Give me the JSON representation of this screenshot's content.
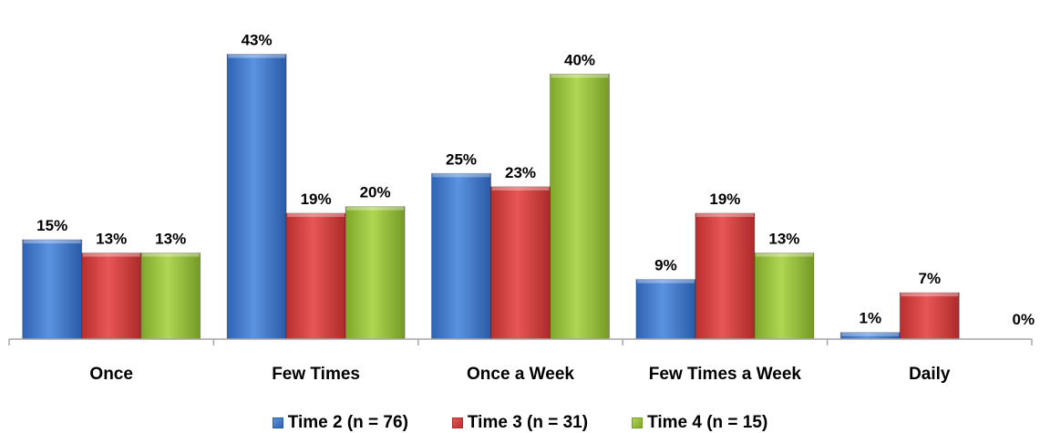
{
  "chart_data": {
    "type": "bar",
    "title": "",
    "xlabel": "",
    "ylabel": "",
    "ylim": [
      0,
      45
    ],
    "grid": false,
    "legend_position": "bottom",
    "categories": [
      "Once",
      "Few Times",
      "Once a Week",
      "Few Times a Week",
      "Daily"
    ],
    "series": [
      {
        "name": "Time 2 (n = 76)",
        "color": "#4a7fcf",
        "values": [
          15,
          43,
          25,
          9,
          1
        ],
        "labels": [
          "15%",
          "43%",
          "25%",
          "9%",
          "1%"
        ]
      },
      {
        "name": "Time 3 (n = 31)",
        "color": "#d94444",
        "values": [
          13,
          19,
          23,
          19,
          7
        ],
        "labels": [
          "13%",
          "19%",
          "23%",
          "19%",
          "7%"
        ]
      },
      {
        "name": "Time 4 (n = 15)",
        "color": "#9bc33e",
        "values": [
          13,
          20,
          40,
          13,
          0
        ],
        "labels": [
          "13%",
          "20%",
          "40%",
          "13%",
          "0%"
        ]
      }
    ]
  }
}
